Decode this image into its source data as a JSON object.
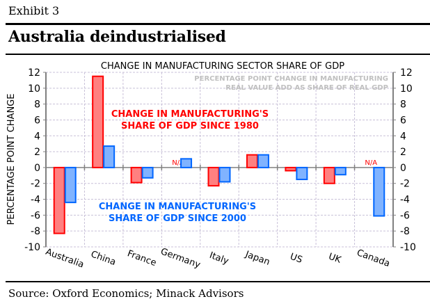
{
  "header": {
    "exhibit_label": "Exhibit 3",
    "title": "Australia deindustrialised"
  },
  "footer": {
    "source": "Source: Oxford Economics; Minack Advisors"
  },
  "chart_data": {
    "type": "bar",
    "title": "CHANGE IN MANUFACTURING SECTOR SHARE OF GDP",
    "subtitle_lines": [
      "PERCENTAGE POINT CHANGE IN MANUFACTURING",
      "REAL VALUE ADD AS SHARE OF REAL GDP"
    ],
    "ylabel": "PERCENTAGE POINT CHANGE",
    "xlabel": "",
    "ylim": [
      -10,
      12
    ],
    "yticks": [
      12,
      10,
      8,
      6,
      4,
      2,
      0,
      -2,
      -4,
      -6,
      -8,
      -10
    ],
    "grid": true,
    "categories": [
      "Australia",
      "China",
      "France",
      "Germany",
      "Italy",
      "Japan",
      "US",
      "UK",
      "Canada"
    ],
    "series": [
      {
        "name": "CHANGE IN MANUFACTURING'S SHARE OF GDP SINCE 1980",
        "label_lines": [
          "CHANGE IN MANUFACTURING'S",
          "SHARE OF GDP SINCE 1980"
        ],
        "color": "#ff0000",
        "fill": "#ff8080",
        "values": [
          -8.3,
          11.5,
          -1.9,
          null,
          -2.3,
          1.6,
          -0.4,
          -2.0,
          null
        ]
      },
      {
        "name": "CHANGE IN MANUFACTURING'S SHARE OF GDP SINCE 2000",
        "label_lines": [
          "CHANGE IN MANUFACTURING'S",
          "SHARE OF GDP SINCE 2000"
        ],
        "color": "#0066ff",
        "fill": "#80b3ff",
        "values": [
          -4.4,
          2.7,
          -1.3,
          1.1,
          -1.8,
          1.6,
          -1.5,
          -0.9,
          -6.1
        ]
      }
    ],
    "missing_label": "N/A",
    "colors": {
      "subtitle": "#c0c0c0",
      "axis": "#808080",
      "grid": "#c8c0d8"
    }
  }
}
